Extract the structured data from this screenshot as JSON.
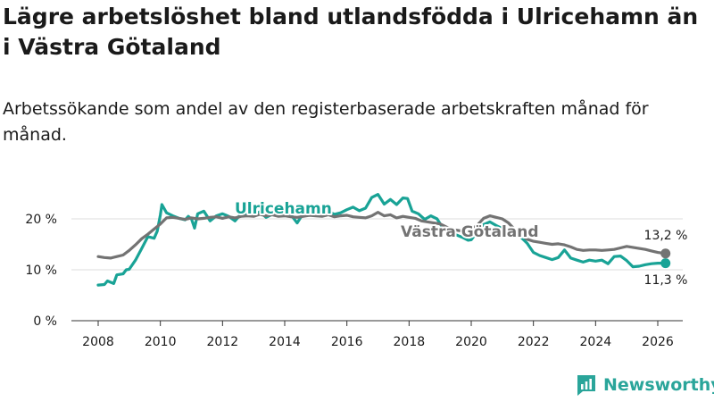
{
  "title": "Lägre arbetslöshet bland utlandsfödda i Ulricehamn än i Västra Götaland",
  "subtitle": "Arbetssökande som andel av den registerbaserade arbetskraften månad för månad.",
  "logo_text": "Newsworthy",
  "colors": {
    "ulricehamn": "#19a396",
    "vastra": "#737373",
    "grid": "#dddddd",
    "axis": "#333333"
  },
  "chart_data": {
    "type": "line",
    "x_ticks": [
      2008,
      2010,
      2012,
      2014,
      2016,
      2018,
      2020,
      2022,
      2024,
      2026
    ],
    "y_ticks": [
      0,
      10,
      20
    ],
    "y_tick_labels": [
      "0 %",
      "10 %",
      "20 %"
    ],
    "xlim": [
      2007.2,
      2026.75
    ],
    "ylim": [
      0,
      24
    ],
    "series": [
      {
        "name": "Ulricehamn",
        "color": "#19a396",
        "end_label": "11,3 %",
        "points": [
          [
            2008.0,
            7.0
          ],
          [
            2008.2,
            7.1
          ],
          [
            2008.3,
            7.8
          ],
          [
            2008.5,
            7.3
          ],
          [
            2008.6,
            9.0
          ],
          [
            2008.8,
            9.2
          ],
          [
            2008.9,
            10.0
          ],
          [
            2009.0,
            10.1
          ],
          [
            2009.2,
            11.9
          ],
          [
            2009.4,
            14.2
          ],
          [
            2009.6,
            16.5
          ],
          [
            2009.8,
            16.2
          ],
          [
            2009.9,
            17.6
          ],
          [
            2010.0,
            20.8
          ],
          [
            2010.05,
            22.8
          ],
          [
            2010.2,
            21.2
          ],
          [
            2010.4,
            20.6
          ],
          [
            2010.6,
            20.1
          ],
          [
            2010.8,
            19.8
          ],
          [
            2010.9,
            20.5
          ],
          [
            2011.0,
            20.0
          ],
          [
            2011.1,
            18.2
          ],
          [
            2011.2,
            21.0
          ],
          [
            2011.4,
            21.5
          ],
          [
            2011.6,
            19.6
          ],
          [
            2011.8,
            20.6
          ],
          [
            2012.0,
            21.0
          ],
          [
            2012.2,
            20.5
          ],
          [
            2012.4,
            19.6
          ],
          [
            2012.6,
            21.0
          ],
          [
            2012.8,
            20.9
          ],
          [
            2013.0,
            20.6
          ],
          [
            2013.2,
            21.4
          ],
          [
            2013.4,
            20.3
          ],
          [
            2013.6,
            20.9
          ],
          [
            2013.8,
            21.3
          ],
          [
            2014.0,
            20.6
          ],
          [
            2014.2,
            20.8
          ],
          [
            2014.4,
            19.2
          ],
          [
            2014.6,
            21.1
          ],
          [
            2014.8,
            20.7
          ],
          [
            2015.0,
            21.3
          ],
          [
            2015.2,
            20.6
          ],
          [
            2015.4,
            21.4
          ],
          [
            2015.6,
            20.9
          ],
          [
            2015.8,
            21.2
          ],
          [
            2016.0,
            21.8
          ],
          [
            2016.2,
            22.3
          ],
          [
            2016.4,
            21.6
          ],
          [
            2016.6,
            22.1
          ],
          [
            2016.8,
            24.2
          ],
          [
            2017.0,
            24.8
          ],
          [
            2017.2,
            22.9
          ],
          [
            2017.4,
            23.8
          ],
          [
            2017.6,
            22.8
          ],
          [
            2017.8,
            24.1
          ],
          [
            2017.95,
            24.0
          ],
          [
            2018.1,
            21.5
          ],
          [
            2018.3,
            21.0
          ],
          [
            2018.5,
            19.9
          ],
          [
            2018.7,
            20.6
          ],
          [
            2018.9,
            20.0
          ],
          [
            2019.1,
            18.1
          ],
          [
            2019.3,
            17.8
          ],
          [
            2019.5,
            16.9
          ],
          [
            2019.7,
            16.4
          ],
          [
            2019.9,
            15.8
          ],
          [
            2020.0,
            15.9
          ],
          [
            2020.2,
            17.5
          ],
          [
            2020.4,
            18.9
          ],
          [
            2020.6,
            19.4
          ],
          [
            2020.8,
            18.7
          ],
          [
            2021.0,
            18.1
          ],
          [
            2021.2,
            17.3
          ],
          [
            2021.4,
            16.9
          ],
          [
            2021.6,
            16.4
          ],
          [
            2021.8,
            15.2
          ],
          [
            2022.0,
            13.4
          ],
          [
            2022.2,
            12.8
          ],
          [
            2022.4,
            12.4
          ],
          [
            2022.6,
            12.0
          ],
          [
            2022.8,
            12.4
          ],
          [
            2023.0,
            13.9
          ],
          [
            2023.2,
            12.3
          ],
          [
            2023.4,
            11.9
          ],
          [
            2023.6,
            11.5
          ],
          [
            2023.8,
            11.9
          ],
          [
            2024.0,
            11.7
          ],
          [
            2024.2,
            11.9
          ],
          [
            2024.4,
            11.2
          ],
          [
            2024.6,
            12.6
          ],
          [
            2024.8,
            12.7
          ],
          [
            2025.0,
            11.8
          ],
          [
            2025.2,
            10.6
          ],
          [
            2025.4,
            10.7
          ],
          [
            2025.6,
            11.0
          ],
          [
            2025.8,
            11.2
          ],
          [
            2026.0,
            11.3
          ],
          [
            2026.25,
            11.3
          ]
        ]
      },
      {
        "name": "Västra Götaland",
        "color": "#737373",
        "end_label": "13,2 %",
        "points": [
          [
            2008.0,
            12.6
          ],
          [
            2008.2,
            12.4
          ],
          [
            2008.4,
            12.3
          ],
          [
            2008.6,
            12.6
          ],
          [
            2008.8,
            12.9
          ],
          [
            2009.0,
            13.8
          ],
          [
            2009.2,
            14.9
          ],
          [
            2009.4,
            16.1
          ],
          [
            2009.6,
            17.0
          ],
          [
            2009.8,
            18.0
          ],
          [
            2010.0,
            19.0
          ],
          [
            2010.2,
            20.2
          ],
          [
            2010.4,
            20.3
          ],
          [
            2010.6,
            20.1
          ],
          [
            2010.8,
            19.9
          ],
          [
            2011.0,
            20.2
          ],
          [
            2011.2,
            20.0
          ],
          [
            2011.4,
            20.1
          ],
          [
            2011.6,
            20.3
          ],
          [
            2011.8,
            20.4
          ],
          [
            2012.0,
            20.1
          ],
          [
            2012.2,
            20.4
          ],
          [
            2012.4,
            20.2
          ],
          [
            2012.6,
            20.5
          ],
          [
            2012.8,
            20.6
          ],
          [
            2013.0,
            20.5
          ],
          [
            2013.2,
            20.9
          ],
          [
            2013.4,
            20.6
          ],
          [
            2013.6,
            20.8
          ],
          [
            2013.8,
            20.5
          ],
          [
            2014.0,
            20.6
          ],
          [
            2014.2,
            20.4
          ],
          [
            2014.4,
            20.3
          ],
          [
            2014.6,
            20.5
          ],
          [
            2014.8,
            20.7
          ],
          [
            2015.0,
            20.6
          ],
          [
            2015.2,
            20.5
          ],
          [
            2015.4,
            20.8
          ],
          [
            2015.6,
            20.4
          ],
          [
            2015.8,
            20.6
          ],
          [
            2016.0,
            20.7
          ],
          [
            2016.2,
            20.4
          ],
          [
            2016.4,
            20.3
          ],
          [
            2016.6,
            20.2
          ],
          [
            2016.8,
            20.6
          ],
          [
            2017.0,
            21.3
          ],
          [
            2017.2,
            20.6
          ],
          [
            2017.4,
            20.8
          ],
          [
            2017.6,
            20.2
          ],
          [
            2017.8,
            20.5
          ],
          [
            2018.0,
            20.3
          ],
          [
            2018.2,
            20.1
          ],
          [
            2018.4,
            19.6
          ],
          [
            2018.6,
            19.4
          ],
          [
            2018.8,
            19.2
          ],
          [
            2019.0,
            19.0
          ],
          [
            2019.2,
            18.4
          ],
          [
            2019.4,
            17.9
          ],
          [
            2019.6,
            17.7
          ],
          [
            2019.8,
            17.6
          ],
          [
            2020.0,
            17.9
          ],
          [
            2020.2,
            18.8
          ],
          [
            2020.4,
            20.1
          ],
          [
            2020.6,
            20.6
          ],
          [
            2020.8,
            20.3
          ],
          [
            2021.0,
            20.0
          ],
          [
            2021.2,
            19.2
          ],
          [
            2021.4,
            17.9
          ],
          [
            2021.6,
            16.8
          ],
          [
            2021.8,
            16.0
          ],
          [
            2022.0,
            15.6
          ],
          [
            2022.2,
            15.4
          ],
          [
            2022.4,
            15.2
          ],
          [
            2022.6,
            15.0
          ],
          [
            2022.8,
            15.1
          ],
          [
            2023.0,
            14.9
          ],
          [
            2023.2,
            14.5
          ],
          [
            2023.4,
            14.0
          ],
          [
            2023.6,
            13.8
          ],
          [
            2023.8,
            13.9
          ],
          [
            2024.0,
            13.9
          ],
          [
            2024.2,
            13.8
          ],
          [
            2024.4,
            13.9
          ],
          [
            2024.6,
            14.0
          ],
          [
            2024.8,
            14.3
          ],
          [
            2025.0,
            14.6
          ],
          [
            2025.2,
            14.4
          ],
          [
            2025.4,
            14.2
          ],
          [
            2025.6,
            14.0
          ],
          [
            2025.8,
            13.7
          ],
          [
            2026.0,
            13.4
          ],
          [
            2026.25,
            13.2
          ]
        ]
      }
    ]
  }
}
